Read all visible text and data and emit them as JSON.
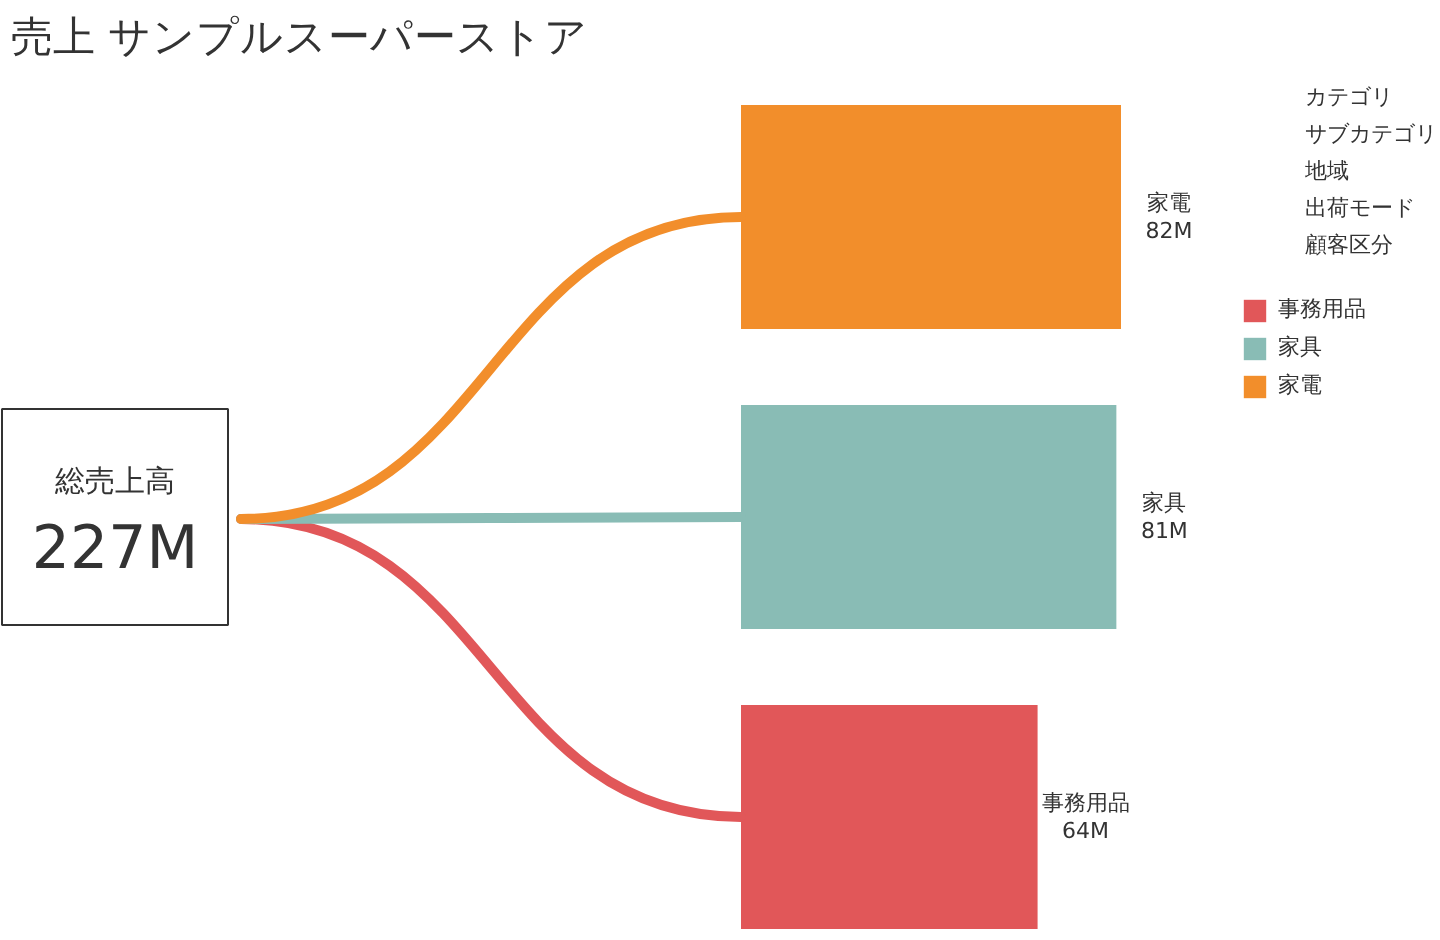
{
  "chart_data": {
    "type": "bar",
    "orientation": "horizontal",
    "title": "売上 サンプルスーパーストア",
    "categories": [
      "家電",
      "家具",
      "事務用品"
    ],
    "series": [
      {
        "name": "事務用品",
        "color": "#e15759",
        "values": [
          null,
          null,
          64
        ],
        "value_labels": [
          null,
          null,
          "64M"
        ]
      },
      {
        "name": "家具",
        "color": "#89bcb5",
        "values": [
          null,
          81,
          null
        ],
        "value_labels": [
          null,
          "81M",
          null
        ]
      },
      {
        "name": "家電",
        "color": "#f28e2b",
        "values": [
          82,
          null,
          null
        ],
        "value_labels": [
          "82M",
          null,
          null
        ]
      }
    ],
    "legend": "right",
    "annotations": [
      "総売上高",
      "227M",
      "カテゴリ",
      "サブカテゴリ",
      "地域",
      "出荷モード",
      "顧客区分"
    ]
  }
}
